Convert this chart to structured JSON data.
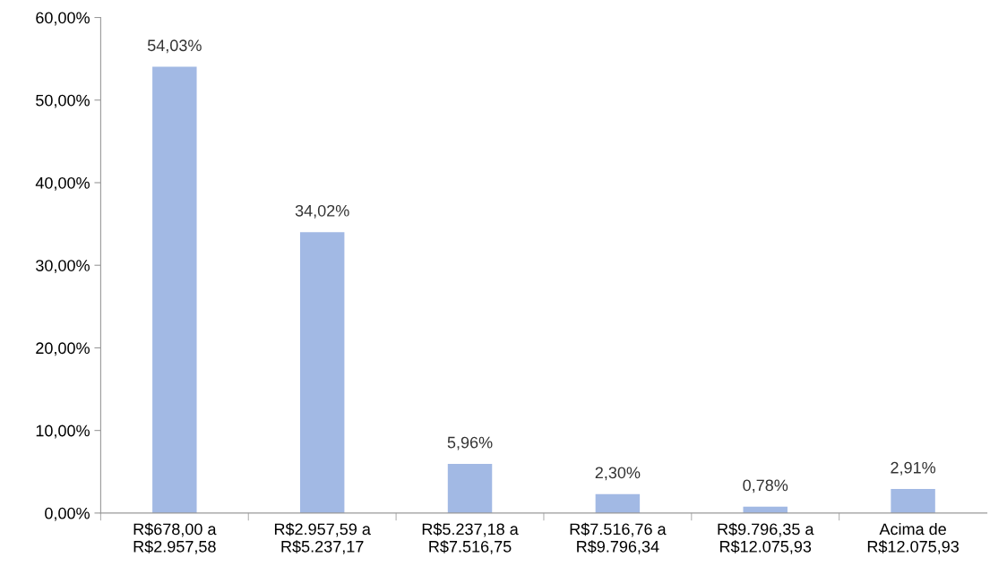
{
  "chart_data": {
    "type": "bar",
    "categories": [
      "R$678,00 a\nR$2.957,58",
      "R$2.957,59 a\nR$5.237,17",
      "R$5.237,18 a\nR$7.516,75",
      "R$7.516,76 a\nR$9.796,34",
      "R$9.796,35 a\nR$12.075,93",
      "Acima de\nR$12.075,93"
    ],
    "values": [
      54.03,
      34.02,
      5.96,
      2.3,
      0.78,
      2.91
    ],
    "value_labels": [
      "54,03%",
      "34,02%",
      "5,96%",
      "2,30%",
      "0,78%",
      "2,91%"
    ],
    "color": "#a2b9e4",
    "ylim": [
      0,
      60
    ],
    "yticks": [
      {
        "value": 0,
        "label": "0,00%"
      },
      {
        "value": 10,
        "label": "10,00%"
      },
      {
        "value": 20,
        "label": "20,00%"
      },
      {
        "value": 30,
        "label": "30,00%"
      },
      {
        "value": 40,
        "label": "40,00%"
      },
      {
        "value": 50,
        "label": "50,00%"
      },
      {
        "value": 60,
        "label": "60,00%"
      }
    ],
    "grid": false,
    "legend": false
  }
}
